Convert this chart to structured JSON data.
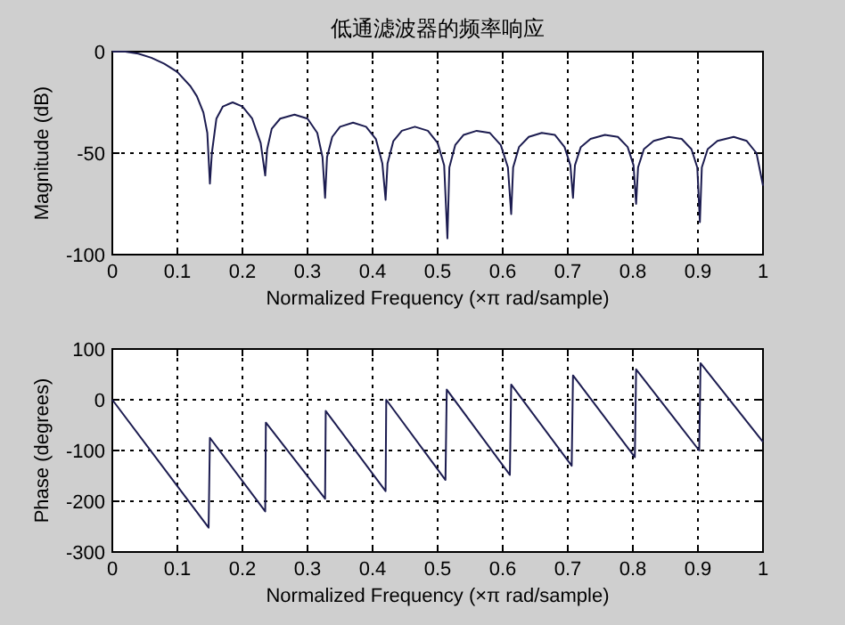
{
  "chart_data": [
    {
      "type": "line",
      "title": "低通滤波器的频率响应",
      "xlabel": "Normalized Frequency  (×π rad/sample)",
      "ylabel": "Magnitude (dB)",
      "xlim": [
        0,
        1
      ],
      "ylim": [
        -100,
        0
      ],
      "xticks": [
        0,
        0.1,
        0.2,
        0.3,
        0.4,
        0.5,
        0.6,
        0.7,
        0.8,
        0.9,
        1
      ],
      "yticks": [
        -100,
        -50,
        0
      ],
      "grid": true,
      "series": [
        {
          "color": "#1c1c50",
          "x": [
            0,
            0.02,
            0.04,
            0.06,
            0.08,
            0.1,
            0.12,
            0.13,
            0.14,
            0.146,
            0.15,
            0.153,
            0.16,
            0.17,
            0.185,
            0.2,
            0.215,
            0.228,
            0.235,
            0.238,
            0.245,
            0.258,
            0.28,
            0.3,
            0.315,
            0.323,
            0.327,
            0.33,
            0.338,
            0.35,
            0.37,
            0.39,
            0.405,
            0.415,
            0.42,
            0.423,
            0.432,
            0.445,
            0.465,
            0.485,
            0.5,
            0.51,
            0.515,
            0.518,
            0.527,
            0.54,
            0.56,
            0.58,
            0.597,
            0.608,
            0.613,
            0.616,
            0.625,
            0.64,
            0.66,
            0.68,
            0.695,
            0.704,
            0.708,
            0.711,
            0.72,
            0.735,
            0.757,
            0.777,
            0.792,
            0.801,
            0.805,
            0.808,
            0.817,
            0.832,
            0.855,
            0.875,
            0.89,
            0.899,
            0.903,
            0.906,
            0.915,
            0.93,
            0.955,
            0.975,
            0.99,
            1.0
          ],
          "values": [
            0,
            0,
            -1,
            -3,
            -6,
            -10,
            -17,
            -22,
            -30,
            -40,
            -65,
            -50,
            -33,
            -27,
            -25,
            -27,
            -33,
            -45,
            -61,
            -48,
            -38,
            -33,
            -31,
            -33,
            -40,
            -52,
            -72,
            -52,
            -42,
            -37,
            -35,
            -37,
            -43,
            -55,
            -73,
            -55,
            -44,
            -39,
            -37,
            -39,
            -45,
            -56,
            -92,
            -57,
            -46,
            -41,
            -39,
            -40,
            -46,
            -57,
            -80,
            -57,
            -47,
            -42,
            -40,
            -41,
            -47,
            -56,
            -72,
            -56,
            -47,
            -43,
            -41,
            -42,
            -47,
            -56,
            -75,
            -57,
            -48,
            -44,
            -42,
            -43,
            -48,
            -57,
            -84,
            -57,
            -48,
            -44,
            -42,
            -44,
            -50,
            -66
          ]
        }
      ]
    },
    {
      "type": "line",
      "xlabel": "Normalized Frequency  (×π rad/sample)",
      "ylabel": "Phase (degrees)",
      "xlim": [
        0,
        1
      ],
      "ylim": [
        -300,
        100
      ],
      "xticks": [
        0,
        0.1,
        0.2,
        0.3,
        0.4,
        0.5,
        0.6,
        0.7,
        0.8,
        0.9,
        1
      ],
      "yticks": [
        -300,
        -200,
        -100,
        0,
        100
      ],
      "grid": true,
      "series": [
        {
          "color": "#1c1c50",
          "x": [
            0,
            0.148,
            0.15,
            0.235,
            0.236,
            0.327,
            0.328,
            0.42,
            0.421,
            0.512,
            0.514,
            0.611,
            0.613,
            0.706,
            0.708,
            0.803,
            0.805,
            0.902,
            0.904,
            1.0
          ],
          "values": [
            0,
            -252,
            -75,
            -220,
            -45,
            -195,
            -22,
            -180,
            0,
            -158,
            20,
            -148,
            30,
            -130,
            48,
            -113,
            60,
            -100,
            72,
            -83
          ]
        }
      ]
    }
  ]
}
